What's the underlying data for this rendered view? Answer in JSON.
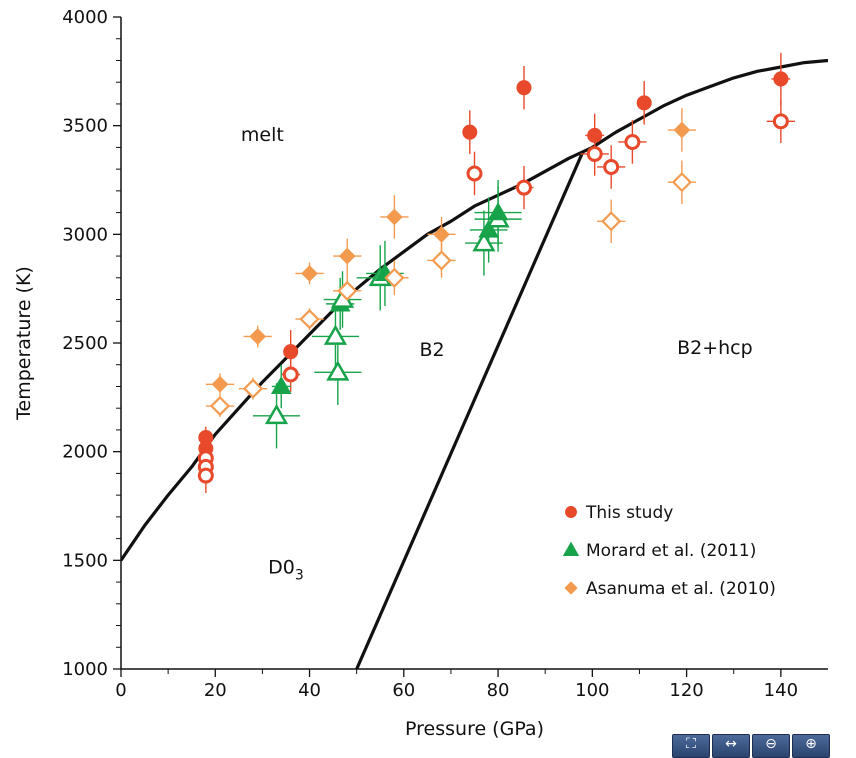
{
  "chart_data": {
    "type": "scatter",
    "xlabel": "Pressure (GPa)",
    "ylabel": "Temperature (K)",
    "xlim": [
      0,
      150
    ],
    "ylim": [
      1000,
      4000
    ],
    "x_ticks": [
      0,
      20,
      40,
      60,
      80,
      100,
      120,
      140
    ],
    "y_ticks": [
      1000,
      1500,
      2000,
      2500,
      3000,
      3500,
      4000
    ],
    "region_labels": [
      {
        "id": "melt",
        "text": "melt",
        "x": 30,
        "y": 3430
      },
      {
        "id": "b2",
        "text": "B2",
        "x": 66,
        "y": 2440
      },
      {
        "id": "b2hcp",
        "text": "B2+hcp",
        "x": 126,
        "y": 2450
      },
      {
        "id": "d03",
        "text": "D0",
        "sub": "3",
        "x": 35,
        "y": 1440
      }
    ],
    "boundaries": [
      {
        "name": "melting curve",
        "color": "#111111",
        "points": [
          [
            0,
            1500
          ],
          [
            5,
            1660
          ],
          [
            10,
            1800
          ],
          [
            15,
            1930
          ],
          [
            20,
            2080
          ],
          [
            25,
            2200
          ],
          [
            30,
            2320
          ],
          [
            35,
            2430
          ],
          [
            40,
            2540
          ],
          [
            45,
            2650
          ],
          [
            50,
            2750
          ],
          [
            55,
            2840
          ],
          [
            60,
            2920
          ],
          [
            65,
            3000
          ],
          [
            70,
            3060
          ],
          [
            75,
            3130
          ],
          [
            80,
            3180
          ],
          [
            85,
            3230
          ],
          [
            90,
            3290
          ],
          [
            95,
            3350
          ],
          [
            100,
            3400
          ],
          [
            105,
            3470
          ],
          [
            110,
            3530
          ],
          [
            115,
            3590
          ],
          [
            120,
            3640
          ],
          [
            125,
            3680
          ],
          [
            130,
            3720
          ],
          [
            135,
            3750
          ],
          [
            140,
            3770
          ],
          [
            145,
            3790
          ],
          [
            150,
            3800
          ]
        ]
      },
      {
        "name": "B2 boundary",
        "color": "#111111",
        "points": [
          [
            50,
            1000
          ],
          [
            98,
            3380
          ]
        ]
      }
    ],
    "series": [
      {
        "name": "This study",
        "color": "#e8492a",
        "marker": "circle",
        "points": [
          {
            "x": 18,
            "y": 2065,
            "filled": true,
            "xerr": 0,
            "yerr": 50
          },
          {
            "x": 18,
            "y": 2015,
            "filled": true,
            "xerr": 0,
            "yerr": 50
          },
          {
            "x": 18,
            "y": 1970,
            "filled": false,
            "xerr": 0,
            "yerr": 50
          },
          {
            "x": 18,
            "y": 1930,
            "filled": false,
            "xerr": 0,
            "yerr": 50
          },
          {
            "x": 18,
            "y": 1890,
            "filled": false,
            "xerr": 0,
            "yerr": 80
          },
          {
            "x": 36,
            "y": 2460,
            "filled": true,
            "xerr": 0,
            "yerr": 100
          },
          {
            "x": 36,
            "y": 2355,
            "filled": false,
            "xerr": 2,
            "yerr": 80
          },
          {
            "x": 74,
            "y": 3470,
            "filled": true,
            "xerr": 0,
            "yerr": 100
          },
          {
            "x": 75,
            "y": 3280,
            "filled": false,
            "xerr": 0,
            "yerr": 100
          },
          {
            "x": 85.5,
            "y": 3675,
            "filled": true,
            "xerr": 0,
            "yerr": 100
          },
          {
            "x": 85.5,
            "y": 3215,
            "filled": false,
            "xerr": 2,
            "yerr": 100
          },
          {
            "x": 100.5,
            "y": 3455,
            "filled": true,
            "xerr": 2,
            "yerr": 100
          },
          {
            "x": 100.5,
            "y": 3370,
            "filled": false,
            "xerr": 3,
            "yerr": 100
          },
          {
            "x": 104,
            "y": 3310,
            "filled": false,
            "xerr": 3,
            "yerr": 100
          },
          {
            "x": 108.5,
            "y": 3425,
            "filled": false,
            "xerr": 3,
            "yerr": 100
          },
          {
            "x": 111,
            "y": 3605,
            "filled": true,
            "xerr": 0,
            "yerr": 100
          },
          {
            "x": 140,
            "y": 3715,
            "filled": true,
            "xerr": 2,
            "yerr": 120
          },
          {
            "x": 140,
            "y": 3520,
            "filled": false,
            "xerr": 3,
            "yerr": 100
          }
        ]
      },
      {
        "name": "Morard et al. (2011)",
        "color": "#17a34a",
        "marker": "triangle",
        "points": [
          {
            "x": 34,
            "y": 2300,
            "filled": true,
            "xerr": 2,
            "yerr": 100
          },
          {
            "x": 33,
            "y": 2165,
            "filled": false,
            "xerr": 5,
            "yerr": 150
          },
          {
            "x": 46,
            "y": 2365,
            "filled": false,
            "xerr": 5,
            "yerr": 150
          },
          {
            "x": 45.5,
            "y": 2530,
            "filled": false,
            "xerr": 5,
            "yerr": 150
          },
          {
            "x": 46.5,
            "y": 2680,
            "filled": true,
            "xerr": 3,
            "yerr": 120
          },
          {
            "x": 47,
            "y": 2700,
            "filled": false,
            "xerr": 4,
            "yerr": 130
          },
          {
            "x": 55,
            "y": 2800,
            "filled": false,
            "xerr": 5,
            "yerr": 150
          },
          {
            "x": 56,
            "y": 2820,
            "filled": true,
            "xerr": 4,
            "yerr": 150
          },
          {
            "x": 77,
            "y": 2960,
            "filled": false,
            "xerr": 4,
            "yerr": 150
          },
          {
            "x": 78,
            "y": 3020,
            "filled": true,
            "xerr": 4,
            "yerr": 150
          },
          {
            "x": 80,
            "y": 3070,
            "filled": false,
            "xerr": 5,
            "yerr": 150
          },
          {
            "x": 80,
            "y": 3100,
            "filled": true,
            "xerr": 5,
            "yerr": 150
          }
        ]
      },
      {
        "name": "Asanuma et al. (2010)",
        "color": "#f39a4e",
        "marker": "diamond",
        "points": [
          {
            "x": 21,
            "y": 2310,
            "filled": true,
            "xerr": 3,
            "yerr": 50
          },
          {
            "x": 21,
            "y": 2210,
            "filled": false,
            "xerr": 3,
            "yerr": 50
          },
          {
            "x": 29,
            "y": 2530,
            "filled": true,
            "xerr": 3,
            "yerr": 50
          },
          {
            "x": 28,
            "y": 2290,
            "filled": false,
            "xerr": 3,
            "yerr": 50
          },
          {
            "x": 40,
            "y": 2820,
            "filled": true,
            "xerr": 3,
            "yerr": 50
          },
          {
            "x": 40,
            "y": 2610,
            "filled": false,
            "xerr": 3,
            "yerr": 50
          },
          {
            "x": 48,
            "y": 2900,
            "filled": true,
            "xerr": 3,
            "yerr": 80
          },
          {
            "x": 48,
            "y": 2740,
            "filled": false,
            "xerr": 3,
            "yerr": 80
          },
          {
            "x": 58,
            "y": 3080,
            "filled": true,
            "xerr": 3,
            "yerr": 100
          },
          {
            "x": 58,
            "y": 2800,
            "filled": false,
            "xerr": 3,
            "yerr": 80
          },
          {
            "x": 68,
            "y": 3000,
            "filled": true,
            "xerr": 3,
            "yerr": 80
          },
          {
            "x": 68,
            "y": 2880,
            "filled": false,
            "xerr": 3,
            "yerr": 80
          },
          {
            "x": 104,
            "y": 3060,
            "filled": false,
            "xerr": 3,
            "yerr": 100
          },
          {
            "x": 119,
            "y": 3480,
            "filled": true,
            "xerr": 3,
            "yerr": 100
          },
          {
            "x": 119,
            "y": 3240,
            "filled": false,
            "xerr": 3,
            "yerr": 100
          }
        ]
      }
    ],
    "legend": {
      "placement": "lower-right",
      "entries": [
        {
          "label": "This study",
          "color": "#e8492a",
          "marker": "circle"
        },
        {
          "label": "Morard et al. (2011)",
          "color": "#17a34a",
          "marker": "triangle"
        },
        {
          "label": "Asanuma et al. (2010)",
          "color": "#f39a4e",
          "marker": "diamond"
        }
      ]
    }
  },
  "toolbar": {
    "buttons": [
      {
        "id": "fit",
        "icon": "fit-screen-icon",
        "glyph": "⛶"
      },
      {
        "id": "width",
        "icon": "fit-width-icon",
        "glyph": "↔"
      },
      {
        "id": "zoom-out",
        "icon": "zoom-out-icon",
        "glyph": "⊖"
      },
      {
        "id": "zoom-in",
        "icon": "zoom-in-icon",
        "glyph": "⊕"
      }
    ]
  }
}
